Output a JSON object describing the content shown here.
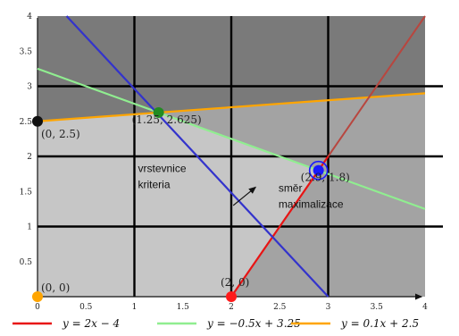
{
  "chart_data": {
    "type": "line",
    "xlim": [
      0,
      4
    ],
    "ylim": [
      0,
      4
    ],
    "x_ticks": [
      0,
      0.5,
      1,
      1.5,
      2,
      2.5,
      3,
      3.5,
      4
    ],
    "y_ticks": [
      0.5,
      1,
      1.5,
      2,
      2.5,
      3,
      3.5,
      4
    ],
    "grid": "bold black lines at integer values",
    "series": [
      {
        "name": "y = 2x − 4",
        "slope": 2,
        "intercept": -4,
        "x_from": 2,
        "x_to": 3,
        "color": "#e81414"
      },
      {
        "name": "y = −0.5x + 3.25",
        "slope": -0.5,
        "intercept": 3.25,
        "x_from": 0,
        "x_to": 4,
        "color": "#90ee90"
      },
      {
        "name": "y = 0.1x + 2.5",
        "slope": 0.1,
        "intercept": 2.5,
        "x_from": 0,
        "x_to": 4,
        "color": "#ffa500"
      }
    ],
    "objective_line": {
      "points": [
        [
          0.3,
          4
        ],
        [
          3,
          0
        ]
      ],
      "color": "#3333cc"
    },
    "points": [
      {
        "label": "(0, 0)",
        "x": 0,
        "y": 0,
        "color": "#ffa500"
      },
      {
        "label": "(0, 2.5)",
        "x": 0,
        "y": 2.5,
        "color": "#111111"
      },
      {
        "label": "(1.25, 2.625)",
        "x": 1.25,
        "y": 2.625,
        "color": "#228b22"
      },
      {
        "label": "(2.9, 1.8)",
        "x": 2.9,
        "y": 1.8,
        "color": "#1a1aff"
      },
      {
        "label": "(2, 0)",
        "x": 2,
        "y": 0,
        "color": "#ff1a1a"
      }
    ],
    "annotations": [
      {
        "text": "vrstevnice",
        "x": 1.0,
        "y": 1.78
      },
      {
        "text": "kriteria",
        "x": 1.0,
        "y": 1.55
      },
      {
        "text": "směr",
        "x": 2.45,
        "y": 1.5
      },
      {
        "text": "maximalizace",
        "x": 2.45,
        "y": 1.27
      }
    ],
    "arrow": {
      "from": [
        2.02,
        1.3
      ],
      "to": [
        2.25,
        1.56
      ]
    },
    "regions": [
      {
        "name": "above-orange",
        "color": "#7a7a7a"
      },
      {
        "name": "above-green",
        "color": "#a3a3a3"
      },
      {
        "name": "left-of-red",
        "color": "#c6c6c6"
      }
    ]
  }
}
